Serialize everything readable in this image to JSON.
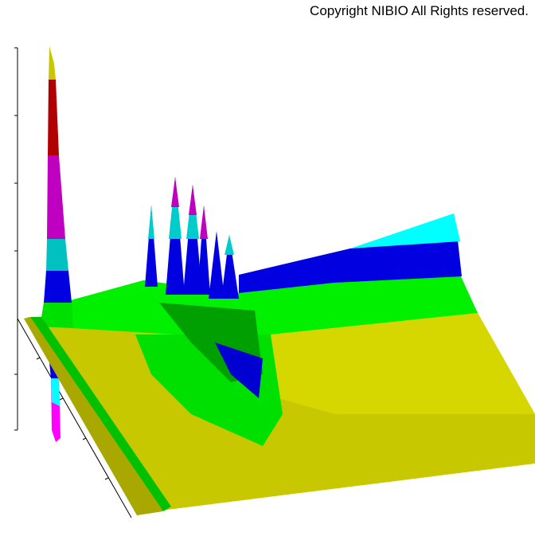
{
  "copyright": "Copyright NIBIO All Rights reserved."
}
